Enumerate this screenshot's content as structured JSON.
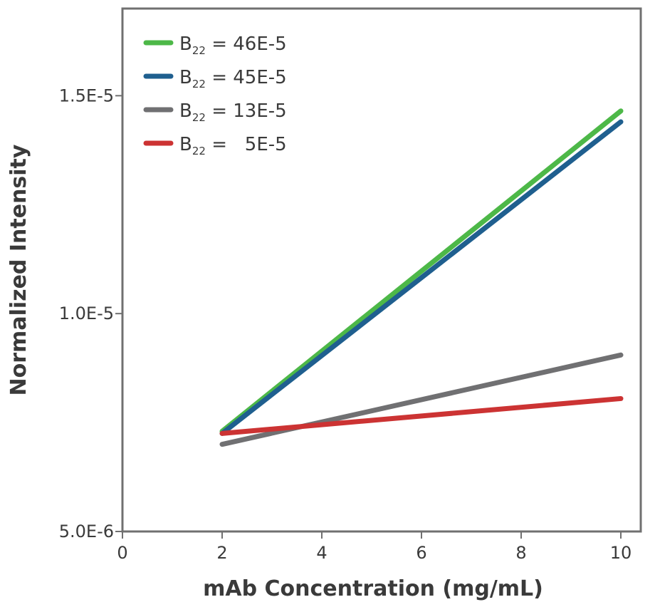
{
  "chart_data": {
    "type": "line",
    "xlabel": "mAb Concentration (mg/mL)",
    "ylabel": "Normalized Intensity",
    "xlim": [
      0,
      10.4
    ],
    "ylim": [
      5e-06,
      1.7e-05
    ],
    "x_ticks": [
      0,
      2,
      4,
      6,
      8,
      10
    ],
    "x_tick_labels": [
      "0",
      "2",
      "4",
      "6",
      "8",
      "10"
    ],
    "y_ticks": [
      5e-06,
      1e-05,
      1.5e-05
    ],
    "y_tick_labels": [
      "5.0E-6",
      "1.0E-5",
      "1.5E-5"
    ],
    "grid": false,
    "legend_position": "top-left",
    "series": [
      {
        "name": "B22 = 46E-5",
        "legend_label": "B",
        "legend_sub": "22",
        "legend_value": "= 46E-5",
        "color": "#4db848",
        "x": [
          2,
          10
        ],
        "y": [
          7.3e-06,
          1.465e-05
        ]
      },
      {
        "name": "B22 = 45E-5",
        "legend_label": "B",
        "legend_sub": "22",
        "legend_value": "= 45E-5",
        "color": "#1f5f8f",
        "x": [
          2,
          10
        ],
        "y": [
          7.25e-06,
          1.44e-05
        ]
      },
      {
        "name": "B22 = 13E-5",
        "legend_label": "B",
        "legend_sub": "22",
        "legend_value": "= 13E-5",
        "color": "#707072",
        "x": [
          2,
          10
        ],
        "y": [
          7e-06,
          9.05e-06
        ]
      },
      {
        "name": "B22 = 5E-5",
        "legend_label": "B",
        "legend_sub": "22",
        "legend_value": "=   5E-5",
        "color": "#cc3333",
        "x": [
          2,
          10
        ],
        "y": [
          7.25e-06,
          8.05e-06
        ]
      }
    ]
  }
}
